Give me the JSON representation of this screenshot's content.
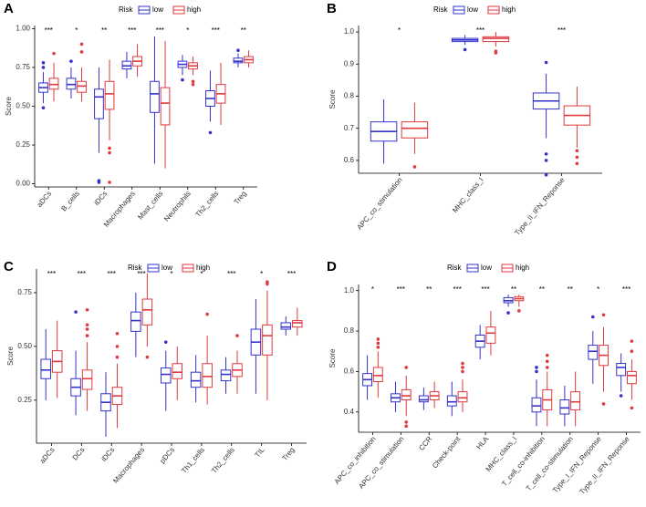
{
  "chart_data": [
    {
      "type": "box",
      "title": "A",
      "legend_title": "Risk",
      "ylabel": "Score",
      "categories": [
        "aDCs",
        "B_cells",
        "iDCs",
        "Macrophages",
        "Mast_cells",
        "Neutrophils",
        "Th2_cells",
        "Treg"
      ],
      "annotations": [
        "***",
        "*",
        "**",
        "***",
        "***",
        "*",
        "***",
        "**"
      ],
      "ylim": [
        -0.02,
        1.02
      ],
      "yticks": [
        {
          "value": 0,
          "label": "0.00"
        },
        0.25,
        {
          "value": 0.5,
          "label": "0.50"
        },
        0.75,
        {
          "value": 1,
          "label": "1.00"
        }
      ],
      "series": [
        {
          "name": "low",
          "color": "#3333cc",
          "values": [
            {
              "min": 0.52,
              "q1": 0.59,
              "median": 0.62,
              "q3": 0.65,
              "max": 0.72,
              "outliers": [
                0.78,
                0.75,
                0.49
              ]
            },
            {
              "min": 0.55,
              "q1": 0.61,
              "median": 0.64,
              "q3": 0.68,
              "max": 0.75,
              "outliers": [
                0.79
              ]
            },
            {
              "min": 0.2,
              "q1": 0.42,
              "median": 0.56,
              "q3": 0.61,
              "max": 0.75,
              "outliers": [
                0.02,
                0.01
              ]
            },
            {
              "min": 0.68,
              "q1": 0.74,
              "median": 0.76,
              "q3": 0.79,
              "max": 0.85,
              "outliers": []
            },
            {
              "min": 0.13,
              "q1": 0.46,
              "median": 0.58,
              "q3": 0.66,
              "max": 0.95,
              "outliers": []
            },
            {
              "min": 0.7,
              "q1": 0.75,
              "median": 0.77,
              "q3": 0.79,
              "max": 0.83,
              "outliers": [
                0.67
              ]
            },
            {
              "min": 0.4,
              "q1": 0.5,
              "median": 0.55,
              "q3": 0.6,
              "max": 0.73,
              "outliers": [
                0.33
              ]
            },
            {
              "min": 0.75,
              "q1": 0.78,
              "median": 0.79,
              "q3": 0.81,
              "max": 0.84,
              "outliers": [
                0.86
              ]
            }
          ]
        },
        {
          "name": "high",
          "color": "#e0393e",
          "values": [
            {
              "min": 0.53,
              "q1": 0.61,
              "median": 0.64,
              "q3": 0.68,
              "max": 0.78,
              "outliers": [
                0.84
              ]
            },
            {
              "min": 0.53,
              "q1": 0.59,
              "median": 0.63,
              "q3": 0.66,
              "max": 0.75,
              "outliers": [
                0.85,
                0.9
              ]
            },
            {
              "min": 0.28,
              "q1": 0.48,
              "median": 0.58,
              "q3": 0.66,
              "max": 0.8,
              "outliers": [
                0.23,
                0.2,
                0.01
              ]
            },
            {
              "min": 0.69,
              "q1": 0.76,
              "median": 0.79,
              "q3": 0.82,
              "max": 0.9,
              "outliers": []
            },
            {
              "min": 0.1,
              "q1": 0.38,
              "median": 0.52,
              "q3": 0.62,
              "max": 0.92,
              "outliers": []
            },
            {
              "min": 0.7,
              "q1": 0.74,
              "median": 0.76,
              "q3": 0.78,
              "max": 0.82,
              "outliers": [
                0.66,
                0.64
              ]
            },
            {
              "min": 0.38,
              "q1": 0.52,
              "median": 0.58,
              "q3": 0.64,
              "max": 0.78,
              "outliers": []
            },
            {
              "min": 0.75,
              "q1": 0.78,
              "median": 0.8,
              "q3": 0.82,
              "max": 0.86,
              "outliers": []
            }
          ]
        }
      ]
    },
    {
      "type": "box",
      "title": "B",
      "legend_title": "Risk",
      "ylabel": "Score",
      "categories": [
        "APC_co_stimulation",
        "MHC_class_I",
        "Type_II_IFN_Reponse"
      ],
      "annotations": [
        "*",
        "***",
        "***"
      ],
      "ylim": [
        0.56,
        1.02
      ],
      "yticks": [
        0.6,
        0.7,
        0.8,
        0.9,
        {
          "value": 1,
          "label": "1.0"
        }
      ],
      "series": [
        {
          "name": "low",
          "color": "#3333cc",
          "values": [
            {
              "min": 0.59,
              "q1": 0.66,
              "median": 0.69,
              "q3": 0.72,
              "max": 0.79,
              "outliers": []
            },
            {
              "min": 0.96,
              "q1": 0.97,
              "median": 0.975,
              "q3": 0.98,
              "max": 0.99,
              "outliers": [
                0.945
              ]
            },
            {
              "min": 0.67,
              "q1": 0.76,
              "median": 0.785,
              "q3": 0.81,
              "max": 0.87,
              "outliers": [
                0.905,
                0.62,
                0.6,
                0.555
              ]
            }
          ]
        },
        {
          "name": "high",
          "color": "#e0393e",
          "values": [
            {
              "min": 0.62,
              "q1": 0.67,
              "median": 0.7,
              "q3": 0.72,
              "max": 0.78,
              "outliers": [
                0.58
              ]
            },
            {
              "min": 0.955,
              "q1": 0.97,
              "median": 0.98,
              "q3": 0.985,
              "max": 1.0,
              "outliers": [
                0.94,
                0.935
              ]
            },
            {
              "min": 0.64,
              "q1": 0.71,
              "median": 0.74,
              "q3": 0.77,
              "max": 0.83,
              "outliers": [
                0.63,
                0.61,
                0.59
              ]
            }
          ]
        }
      ]
    },
    {
      "type": "box",
      "title": "C",
      "legend_title": "Risk",
      "ylabel": "Score",
      "categories": [
        "aDCs",
        "DCs",
        "iDCs",
        "Macrophages",
        "pDCs",
        "Th1_cells",
        "Th2_cells",
        "TIL",
        "Treg"
      ],
      "annotations": [
        "***",
        "***",
        "***",
        "***",
        "*",
        "*",
        "***",
        "*",
        "***"
      ],
      "ylim": [
        0.05,
        0.86
      ],
      "yticks": [
        0.25,
        {
          "value": 0.5,
          "label": "0.50"
        },
        0.75
      ],
      "series": [
        {
          "name": "low",
          "color": "#3333cc",
          "values": [
            {
              "min": 0.25,
              "q1": 0.35,
              "median": 0.39,
              "q3": 0.44,
              "max": 0.58,
              "outliers": []
            },
            {
              "min": 0.18,
              "q1": 0.27,
              "median": 0.31,
              "q3": 0.35,
              "max": 0.48,
              "outliers": [
                0.66
              ]
            },
            {
              "min": 0.08,
              "q1": 0.2,
              "median": 0.24,
              "q3": 0.28,
              "max": 0.38,
              "outliers": []
            },
            {
              "min": 0.45,
              "q1": 0.57,
              "median": 0.62,
              "q3": 0.66,
              "max": 0.75,
              "outliers": []
            },
            {
              "min": 0.2,
              "q1": 0.33,
              "median": 0.37,
              "q3": 0.4,
              "max": 0.48,
              "outliers": [
                0.52
              ]
            },
            {
              "min": 0.24,
              "q1": 0.31,
              "median": 0.34,
              "q3": 0.38,
              "max": 0.46,
              "outliers": []
            },
            {
              "min": 0.28,
              "q1": 0.34,
              "median": 0.37,
              "q3": 0.39,
              "max": 0.45,
              "outliers": []
            },
            {
              "min": 0.28,
              "q1": 0.46,
              "median": 0.52,
              "q3": 0.58,
              "max": 0.72,
              "outliers": []
            },
            {
              "min": 0.55,
              "q1": 0.58,
              "median": 0.59,
              "q3": 0.61,
              "max": 0.64,
              "outliers": []
            }
          ]
        },
        {
          "name": "high",
          "color": "#e0393e",
          "values": [
            {
              "min": 0.26,
              "q1": 0.38,
              "median": 0.43,
              "q3": 0.48,
              "max": 0.62,
              "outliers": []
            },
            {
              "min": 0.2,
              "q1": 0.3,
              "median": 0.35,
              "q3": 0.39,
              "max": 0.52,
              "outliers": [
                0.55,
                0.58,
                0.6,
                0.67
              ]
            },
            {
              "min": 0.12,
              "q1": 0.23,
              "median": 0.27,
              "q3": 0.31,
              "max": 0.42,
              "outliers": [
                0.45,
                0.5,
                0.56
              ]
            },
            {
              "min": 0.5,
              "q1": 0.6,
              "median": 0.67,
              "q3": 0.72,
              "max": 0.84,
              "outliers": [
                0.45
              ]
            },
            {
              "min": 0.25,
              "q1": 0.35,
              "median": 0.38,
              "q3": 0.42,
              "max": 0.5,
              "outliers": []
            },
            {
              "min": 0.23,
              "q1": 0.31,
              "median": 0.36,
              "q3": 0.42,
              "max": 0.55,
              "outliers": [
                0.65
              ]
            },
            {
              "min": 0.28,
              "q1": 0.36,
              "median": 0.39,
              "q3": 0.42,
              "max": 0.48,
              "outliers": [
                0.55
              ]
            },
            {
              "min": 0.25,
              "q1": 0.46,
              "median": 0.55,
              "q3": 0.6,
              "max": 0.76,
              "outliers": [
                0.79,
                0.8
              ]
            },
            {
              "min": 0.55,
              "q1": 0.59,
              "median": 0.61,
              "q3": 0.62,
              "max": 0.68,
              "outliers": []
            }
          ]
        }
      ]
    },
    {
      "type": "box",
      "title": "D",
      "legend_title": "Risk",
      "ylabel": "Score",
      "categories": [
        "APC_co_inhibition",
        "APC_co_stimulation",
        "CCR",
        "Check-point",
        "HLA",
        "MHC_class_I",
        "T_cell_co-inhibition",
        "T_cell_co-stimulation",
        "Type_I_IFN_Reponse",
        "Type_II_IFN_Reponse"
      ],
      "annotations": [
        "*",
        "***",
        "**",
        "***",
        "***",
        "**",
        "**",
        "**",
        "*",
        "***"
      ],
      "ylim": [
        0.3,
        1.03
      ],
      "yticks": [
        0.4,
        0.6,
        0.8,
        {
          "value": 1,
          "label": "1.0"
        }
      ],
      "series": [
        {
          "name": "low",
          "color": "#3333cc",
          "values": [
            {
              "min": 0.46,
              "q1": 0.53,
              "median": 0.56,
              "q3": 0.59,
              "max": 0.68,
              "outliers": []
            },
            {
              "min": 0.4,
              "q1": 0.45,
              "median": 0.47,
              "q3": 0.49,
              "max": 0.55,
              "outliers": []
            },
            {
              "min": 0.41,
              "q1": 0.45,
              "median": 0.46,
              "q3": 0.48,
              "max": 0.52,
              "outliers": []
            },
            {
              "min": 0.38,
              "q1": 0.43,
              "median": 0.45,
              "q3": 0.48,
              "max": 0.55,
              "outliers": []
            },
            {
              "min": 0.66,
              "q1": 0.72,
              "median": 0.75,
              "q3": 0.78,
              "max": 0.83,
              "outliers": []
            },
            {
              "min": 0.92,
              "q1": 0.94,
              "median": 0.95,
              "q3": 0.965,
              "max": 0.98,
              "outliers": [
                0.89
              ]
            },
            {
              "min": 0.33,
              "q1": 0.4,
              "median": 0.43,
              "q3": 0.47,
              "max": 0.56,
              "outliers": [
                0.6,
                0.62
              ]
            },
            {
              "min": 0.33,
              "q1": 0.39,
              "median": 0.42,
              "q3": 0.46,
              "max": 0.53,
              "outliers": []
            },
            {
              "min": 0.54,
              "q1": 0.66,
              "median": 0.7,
              "q3": 0.73,
              "max": 0.8,
              "outliers": [
                0.87
              ]
            },
            {
              "min": 0.5,
              "q1": 0.58,
              "median": 0.62,
              "q3": 0.64,
              "max": 0.69,
              "outliers": [
                0.48
              ]
            }
          ]
        },
        {
          "name": "high",
          "color": "#e0393e",
          "values": [
            {
              "min": 0.47,
              "q1": 0.55,
              "median": 0.58,
              "q3": 0.62,
              "max": 0.7,
              "outliers": [
                0.72,
                0.74,
                0.76
              ]
            },
            {
              "min": 0.38,
              "q1": 0.46,
              "median": 0.48,
              "q3": 0.51,
              "max": 0.58,
              "outliers": [
                0.62,
                0.35,
                0.33
              ]
            },
            {
              "min": 0.42,
              "q1": 0.46,
              "median": 0.48,
              "q3": 0.5,
              "max": 0.55,
              "outliers": []
            },
            {
              "min": 0.4,
              "q1": 0.45,
              "median": 0.47,
              "q3": 0.5,
              "max": 0.56,
              "outliers": [
                0.6,
                0.62,
                0.64
              ]
            },
            {
              "min": 0.68,
              "q1": 0.74,
              "median": 0.79,
              "q3": 0.82,
              "max": 0.9,
              "outliers": []
            },
            {
              "min": 0.92,
              "q1": 0.95,
              "median": 0.96,
              "q3": 0.97,
              "max": 0.98,
              "outliers": [
                0.9
              ]
            },
            {
              "min": 0.33,
              "q1": 0.41,
              "median": 0.46,
              "q3": 0.51,
              "max": 0.6,
              "outliers": [
                0.62,
                0.65,
                0.68
              ]
            },
            {
              "min": 0.33,
              "q1": 0.41,
              "median": 0.45,
              "q3": 0.5,
              "max": 0.6,
              "outliers": []
            },
            {
              "min": 0.5,
              "q1": 0.63,
              "median": 0.68,
              "q3": 0.73,
              "max": 0.82,
              "outliers": [
                0.88,
                0.44
              ]
            },
            {
              "min": 0.46,
              "q1": 0.54,
              "median": 0.58,
              "q3": 0.6,
              "max": 0.66,
              "outliers": [
                0.7,
                0.75,
                0.42
              ]
            }
          ]
        }
      ]
    }
  ]
}
